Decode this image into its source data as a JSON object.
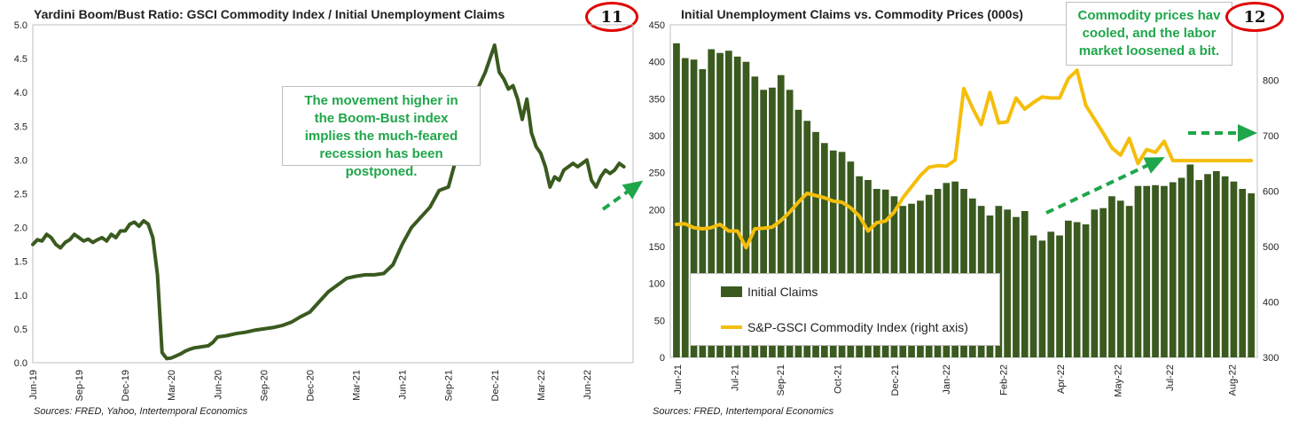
{
  "left": {
    "title": "Yardini Boom/Bust Ratio: GSCI Commodity Index / Initial Unemployment Claims",
    "badge": "11",
    "source": "Sources: FRED, Yahoo, Intertemporal Economics",
    "note_lines": [
      "The movement higher in",
      "the Boom-Bust index",
      "implies the much-feared",
      "recession has been",
      "postponed."
    ]
  },
  "right": {
    "title": "Initial Unemployment Claims vs. Commodity Prices (000s)",
    "badge": "12",
    "source": "Sources: FRED, Intertemporal Economics",
    "note_lines": [
      "Commodity prices hav",
      "cooled, and the labor",
      "market loosened a bit."
    ],
    "legend_bar": "Initial Claims",
    "legend_line": "S&P-GSCI Commodity Index (right axis)"
  },
  "chart_data": [
    {
      "type": "line",
      "title": "Yardini Boom/Bust Ratio: GSCI Commodity Index / Initial Unemployment Claims",
      "xlabel": "",
      "ylabel": "",
      "ylim": [
        0,
        5
      ],
      "yticks": [
        "0.0",
        "0.5",
        "1.0",
        "1.5",
        "2.0",
        "2.5",
        "3.0",
        "3.5",
        "4.0",
        "4.5",
        "5.0"
      ],
      "xticks": [
        "Jun-19",
        "Sep-19",
        "Dec-19",
        "Mar-20",
        "Jun-20",
        "Sep-20",
        "Dec-20",
        "Mar-21",
        "Jun-21",
        "Sep-21",
        "Dec-21",
        "Mar-22",
        "Jun-22"
      ],
      "color": "#3a5a1f",
      "series": [
        {
          "x": [
            0,
            0.1,
            0.2,
            0.3,
            0.4,
            0.5,
            0.6,
            0.7,
            0.8,
            0.9,
            1.0,
            1.1,
            1.2,
            1.3,
            1.4,
            1.5,
            1.6,
            1.7,
            1.8,
            1.9,
            2.0,
            2.1,
            2.2,
            2.3,
            2.4,
            2.5,
            2.6,
            2.7,
            2.8,
            2.9,
            3.0,
            3.1,
            3.2,
            3.3,
            3.4,
            3.5,
            3.6,
            3.7,
            3.8,
            3.9,
            4.0,
            4.2,
            4.4,
            4.6,
            4.8,
            5.0,
            5.2,
            5.4,
            5.6,
            5.8,
            6.0,
            6.2,
            6.4,
            6.6,
            6.8,
            7.0,
            7.2,
            7.4,
            7.6,
            7.8,
            8.0,
            8.2,
            8.4,
            8.6,
            8.8,
            9.0,
            9.2,
            9.4,
            9.6,
            9.8,
            10.0,
            10.1,
            10.2,
            10.3,
            10.4,
            10.5,
            10.6,
            10.7,
            10.8,
            10.9,
            11.0,
            11.1,
            11.2,
            11.3,
            11.4,
            11.5,
            11.6,
            11.7,
            11.8,
            11.9,
            12.0,
            12.1,
            12.2,
            12.3,
            12.4,
            12.5,
            12.6,
            12.7,
            12.8
          ],
          "values": [
            1.75,
            1.82,
            1.8,
            1.9,
            1.85,
            1.75,
            1.7,
            1.78,
            1.82,
            1.9,
            1.85,
            1.8,
            1.83,
            1.78,
            1.82,
            1.85,
            1.8,
            1.9,
            1.85,
            1.95,
            1.95,
            2.05,
            2.08,
            2.02,
            2.1,
            2.05,
            1.85,
            1.3,
            0.15,
            0.06,
            0.07,
            0.1,
            0.13,
            0.17,
            0.2,
            0.22,
            0.23,
            0.24,
            0.25,
            0.3,
            0.38,
            0.4,
            0.43,
            0.45,
            0.48,
            0.5,
            0.52,
            0.55,
            0.6,
            0.68,
            0.75,
            0.9,
            1.05,
            1.15,
            1.25,
            1.28,
            1.3,
            1.3,
            1.32,
            1.45,
            1.75,
            2.0,
            2.15,
            2.3,
            2.55,
            2.6,
            3.1,
            3.6,
            4.0,
            4.3,
            4.7,
            4.3,
            4.2,
            4.05,
            4.1,
            3.9,
            3.6,
            3.9,
            3.4,
            3.2,
            3.1,
            2.9,
            2.6,
            2.75,
            2.7,
            2.85,
            2.9,
            2.95,
            2.9,
            2.95,
            3.0,
            2.7,
            2.6,
            2.75,
            2.85,
            2.8,
            2.85,
            2.95,
            2.9
          ]
        }
      ]
    },
    {
      "type": "bar",
      "title": "Initial Unemployment Claims vs. Commodity Prices (000s)",
      "xlabel": "",
      "ylabel": "",
      "ylim": [
        0,
        450
      ],
      "y2lim": [
        300,
        900
      ],
      "yticks": [
        "0",
        "50",
        "100",
        "150",
        "200",
        "250",
        "300",
        "350",
        "400",
        "450"
      ],
      "y2ticks": [
        "300",
        "400",
        "500",
        "600",
        "700",
        "800"
      ],
      "xticks": [
        "Jun-21",
        "Jul-21",
        "Sep-21",
        "Oct-21",
        "Dec-21",
        "Jan-22",
        "Feb-22",
        "Apr-22",
        "May-22",
        "Jul-22",
        "Aug-22"
      ],
      "bar_color": "#3a5a1f",
      "line_color": "#f5be0b",
      "series": [
        {
          "name": "Initial Claims",
          "type": "bar",
          "values": [
            425,
            405,
            403,
            390,
            417,
            412,
            415,
            407,
            400,
            380,
            362,
            365,
            382,
            362,
            335,
            320,
            305,
            290,
            280,
            278,
            265,
            245,
            240,
            228,
            227,
            218,
            205,
            208,
            212,
            220,
            228,
            236,
            238,
            228,
            215,
            205,
            192,
            205,
            200,
            190,
            198,
            165,
            158,
            170,
            165,
            185,
            183,
            180,
            200,
            202,
            218,
            212,
            205,
            232,
            232,
            233,
            232,
            237,
            243,
            261,
            240,
            248,
            252,
            245,
            238,
            228,
            222
          ]
        },
        {
          "name": "S&P-GSCI Commodity Index (right axis)",
          "type": "line",
          "axis": "right",
          "x": [
            0,
            1,
            2,
            3,
            4,
            5,
            6,
            7,
            8,
            9,
            10,
            11,
            12,
            13,
            14,
            15,
            16,
            17,
            18,
            19,
            20,
            21,
            22,
            23,
            24,
            25,
            26,
            27,
            28,
            29,
            30,
            31,
            32,
            33,
            34,
            35,
            36,
            37,
            38,
            39,
            40,
            41,
            42,
            43,
            44,
            45,
            46,
            47,
            48,
            49,
            50,
            51,
            52,
            53,
            54,
            55,
            56,
            57,
            58,
            59,
            60,
            61,
            62,
            63,
            64,
            65,
            66
          ],
          "values": [
            540,
            541,
            534,
            532,
            534,
            540,
            528,
            528,
            498,
            532,
            533,
            535,
            547,
            562,
            580,
            596,
            592,
            588,
            582,
            580,
            570,
            555,
            528,
            543,
            546,
            562,
            588,
            608,
            628,
            643,
            646,
            645,
            656,
            785,
            750,
            720,
            778,
            723,
            725,
            768,
            748,
            760,
            770,
            768,
            768,
            803,
            818,
            755,
            730,
            705,
            678,
            665,
            695,
            650,
            675,
            670,
            690,
            655,
            655,
            655,
            655,
            655,
            655,
            655,
            655,
            655,
            655
          ]
        }
      ]
    }
  ]
}
